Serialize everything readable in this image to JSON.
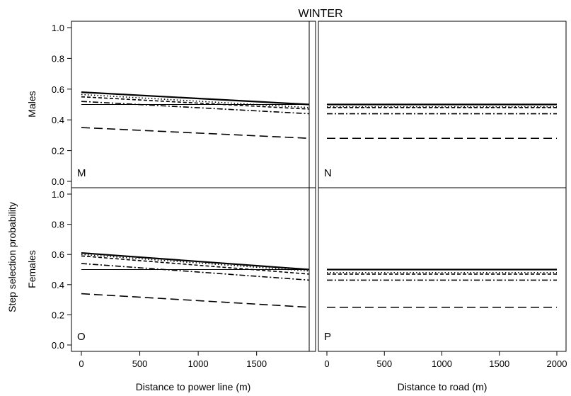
{
  "figure": {
    "title": "WINTER",
    "ylabel": "Step selection probability",
    "row_labels": [
      "Males",
      "Females"
    ],
    "xlabels": [
      "Distance to power line (m)",
      "Distance to road (m)"
    ]
  },
  "chart_data": [
    {
      "type": "line",
      "panel": "M",
      "sex": "Males",
      "xlabel": "Distance to power line (m)",
      "xlim": [
        0,
        1950
      ],
      "ylim": [
        0,
        1
      ],
      "xticks": [
        0,
        500,
        1000,
        1500
      ],
      "yticks": [
        0.0,
        0.2,
        0.4,
        0.6,
        0.8,
        1.0
      ],
      "series": [
        {
          "style": "solid-thick",
          "x": [
            0,
            1950
          ],
          "y": [
            0.58,
            0.5
          ]
        },
        {
          "style": "dotted",
          "x": [
            0,
            1950
          ],
          "y": [
            0.565,
            0.48
          ]
        },
        {
          "style": "dashed-short",
          "x": [
            0,
            1950
          ],
          "y": [
            0.55,
            0.47
          ]
        },
        {
          "style": "dash-dot",
          "x": [
            0,
            1950
          ],
          "y": [
            0.52,
            0.44
          ]
        },
        {
          "style": "solid-thin",
          "x": [
            0,
            1950
          ],
          "y": [
            0.5,
            0.5
          ]
        },
        {
          "style": "dashed-long",
          "x": [
            0,
            1950
          ],
          "y": [
            0.35,
            0.28
          ]
        }
      ]
    },
    {
      "type": "line",
      "panel": "N",
      "sex": "Males",
      "xlabel": "Distance to road (m)",
      "xlim": [
        0,
        2000
      ],
      "ylim": [
        0,
        1
      ],
      "xticks": [
        0,
        500,
        1000,
        1500,
        2000
      ],
      "yticks": [
        0.0,
        0.2,
        0.4,
        0.6,
        0.8,
        1.0
      ],
      "series": [
        {
          "style": "solid-thick",
          "x": [
            0,
            2000
          ],
          "y": [
            0.5,
            0.5
          ]
        },
        {
          "style": "dotted",
          "x": [
            0,
            2000
          ],
          "y": [
            0.485,
            0.485
          ]
        },
        {
          "style": "dashed-short",
          "x": [
            0,
            2000
          ],
          "y": [
            0.48,
            0.48
          ]
        },
        {
          "style": "dash-dot",
          "x": [
            0,
            2000
          ],
          "y": [
            0.44,
            0.44
          ]
        },
        {
          "style": "dashed-long",
          "x": [
            0,
            2000
          ],
          "y": [
            0.28,
            0.28
          ]
        }
      ]
    },
    {
      "type": "line",
      "panel": "O",
      "sex": "Females",
      "xlabel": "Distance to power line (m)",
      "xlim": [
        0,
        1950
      ],
      "ylim": [
        0,
        1
      ],
      "xticks": [
        0,
        500,
        1000,
        1500
      ],
      "yticks": [
        0.0,
        0.2,
        0.4,
        0.6,
        0.8,
        1.0
      ],
      "series": [
        {
          "style": "solid-thick",
          "x": [
            0,
            1950
          ],
          "y": [
            0.61,
            0.5
          ]
        },
        {
          "style": "dotted",
          "x": [
            0,
            1950
          ],
          "y": [
            0.6,
            0.49
          ]
        },
        {
          "style": "dashed-short",
          "x": [
            0,
            1950
          ],
          "y": [
            0.59,
            0.47
          ]
        },
        {
          "style": "dash-dot",
          "x": [
            0,
            1950
          ],
          "y": [
            0.54,
            0.43
          ]
        },
        {
          "style": "solid-thin",
          "x": [
            0,
            1950
          ],
          "y": [
            0.5,
            0.5
          ]
        },
        {
          "style": "dashed-long",
          "x": [
            0,
            1950
          ],
          "y": [
            0.34,
            0.25
          ]
        }
      ]
    },
    {
      "type": "line",
      "panel": "P",
      "sex": "Females",
      "xlabel": "Distance to road (m)",
      "xlim": [
        0,
        2000
      ],
      "ylim": [
        0,
        1
      ],
      "xticks": [
        0,
        500,
        1000,
        1500,
        2000
      ],
      "yticks": [
        0.0,
        0.2,
        0.4,
        0.6,
        0.8,
        1.0
      ],
      "series": [
        {
          "style": "solid-thick",
          "x": [
            0,
            2000
          ],
          "y": [
            0.5,
            0.5
          ]
        },
        {
          "style": "dotted",
          "x": [
            0,
            2000
          ],
          "y": [
            0.48,
            0.48
          ]
        },
        {
          "style": "dashed-short",
          "x": [
            0,
            2000
          ],
          "y": [
            0.47,
            0.47
          ]
        },
        {
          "style": "dash-dot",
          "x": [
            0,
            2000
          ],
          "y": [
            0.43,
            0.43
          ]
        },
        {
          "style": "dashed-long",
          "x": [
            0,
            2000
          ],
          "y": [
            0.25,
            0.25
          ]
        }
      ]
    }
  ]
}
